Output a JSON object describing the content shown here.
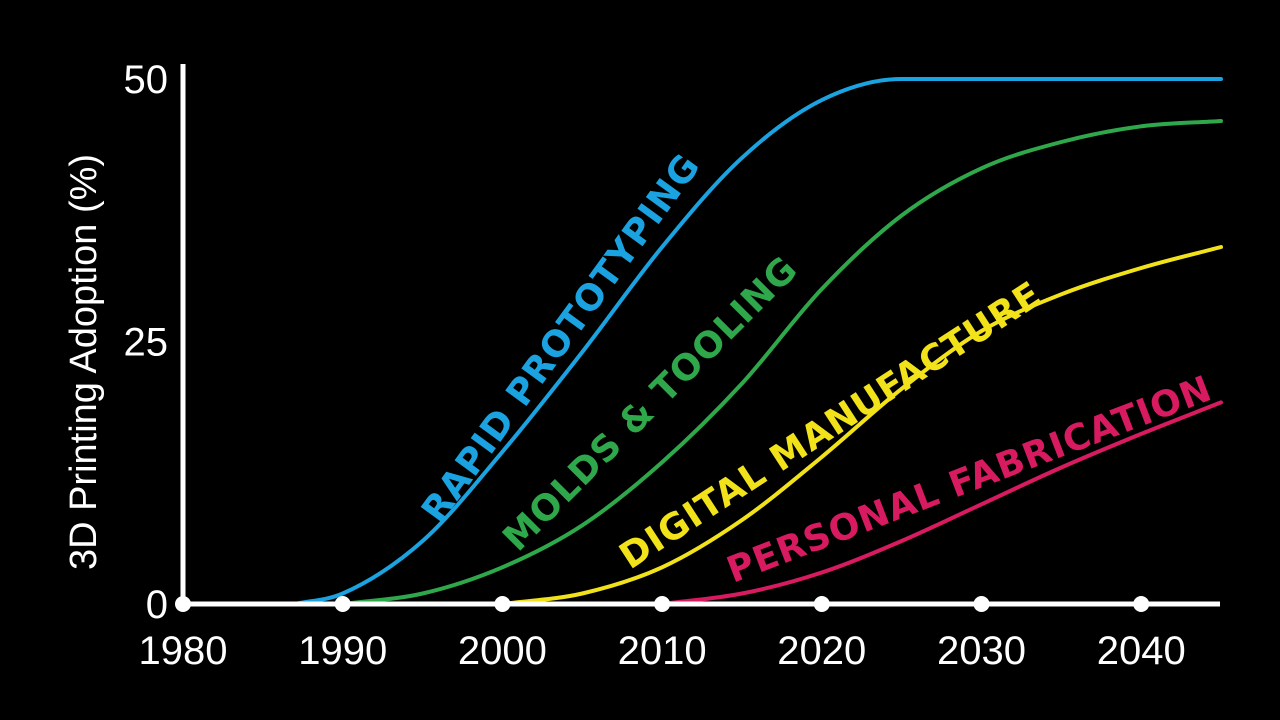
{
  "chart_data": {
    "type": "line",
    "ylabel": "3D Printing Adoption (%)",
    "xlabel": "",
    "xlim": [
      1980,
      2045
    ],
    "ylim": [
      0,
      52
    ],
    "x_ticks": [
      1980,
      1990,
      2000,
      2010,
      2020,
      2030,
      2040
    ],
    "x_tick_labels": [
      "1980",
      "1990",
      "2000",
      "2010",
      "2020",
      "2030",
      "2040"
    ],
    "y_ticks": [
      0,
      25,
      50
    ],
    "y_tick_labels": [
      "0",
      "25",
      "50"
    ],
    "grid": false,
    "background": "#000000",
    "series": [
      {
        "name": "RAPID PROTOTYPING",
        "color": "#1aa3e0",
        "x": [
          1987,
          1990,
          1995,
          2000,
          2005,
          2010,
          2015,
          2020,
          2025,
          2027,
          2030,
          2040,
          2045
        ],
        "y": [
          0,
          1,
          6,
          14.5,
          24,
          34,
          42.5,
          48,
          50,
          50,
          50,
          50,
          50
        ]
      },
      {
        "name": "MOLDS & TOOLING",
        "color": "#2ea84a",
        "x": [
          1990,
          1995,
          2000,
          2005,
          2010,
          2015,
          2020,
          2025,
          2030,
          2035,
          2040,
          2045
        ],
        "y": [
          0,
          1,
          3.5,
          7.5,
          13.5,
          21,
          30,
          37,
          41.5,
          44,
          45.5,
          46
        ]
      },
      {
        "name": "DIGITAL MANUFACTURE",
        "color": "#f2e21a",
        "x": [
          2000,
          2005,
          2010,
          2015,
          2020,
          2025,
          2030,
          2035,
          2040,
          2045
        ],
        "y": [
          0,
          1,
          3.5,
          8,
          14,
          20.5,
          26,
          29.5,
          32,
          34
        ]
      },
      {
        "name": "PERSONAL FABRICATION",
        "color": "#d81b60",
        "x": [
          2010,
          2015,
          2020,
          2025,
          2030,
          2035,
          2040,
          2045
        ],
        "y": [
          0,
          1,
          3,
          6,
          9.5,
          13,
          16.2,
          19.2
        ]
      }
    ]
  }
}
